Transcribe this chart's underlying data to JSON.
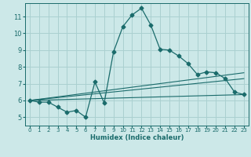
{
  "title": "",
  "xlabel": "Humidex (Indice chaleur)",
  "xlim": [
    -0.5,
    23.5
  ],
  "ylim": [
    4.5,
    11.8
  ],
  "yticks": [
    5,
    6,
    7,
    8,
    9,
    10,
    11
  ],
  "xticks": [
    0,
    1,
    2,
    3,
    4,
    5,
    6,
    7,
    8,
    9,
    10,
    11,
    12,
    13,
    14,
    15,
    16,
    17,
    18,
    19,
    20,
    21,
    22,
    23
  ],
  "bg_color": "#cce8e8",
  "grid_color": "#aad0d0",
  "line_color": "#1a6b6b",
  "line1_x": [
    0,
    1,
    2,
    3,
    4,
    5,
    6,
    7,
    8,
    9,
    10,
    11,
    12,
    13,
    14,
    15,
    16,
    17,
    18,
    19,
    20,
    21,
    22,
    23
  ],
  "line1_y": [
    6.0,
    5.9,
    5.9,
    5.6,
    5.3,
    5.4,
    5.0,
    7.1,
    5.85,
    8.9,
    10.4,
    11.1,
    11.5,
    10.5,
    9.05,
    9.0,
    8.65,
    8.2,
    7.55,
    7.7,
    7.65,
    7.3,
    6.5,
    6.35
  ],
  "line2_x": [
    0,
    23
  ],
  "line2_y": [
    6.0,
    6.35
  ],
  "line3_x": [
    0,
    23
  ],
  "line3_y": [
    6.0,
    7.65
  ],
  "line4_x": [
    0,
    23
  ],
  "line4_y": [
    6.0,
    7.3
  ]
}
